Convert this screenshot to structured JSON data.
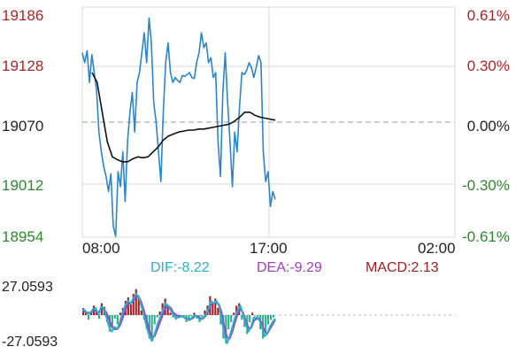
{
  "chart_data": [
    {
      "type": "line",
      "title": "",
      "price_axis_labels": [
        "19186",
        "19128",
        "19070",
        "19012",
        "18954"
      ],
      "percent_axis_labels": [
        "0.61%",
        "0.30%",
        "0.00%",
        "-0.30%",
        "-0.61%"
      ],
      "ylim": [
        18954,
        19186
      ],
      "reference_price": 19070,
      "x_tick_labels": [
        "08:00",
        "17:00",
        "02:00"
      ],
      "grid": true,
      "colors": {
        "up": "#b22222",
        "down": "#2a8a2a",
        "neutral": "#222222",
        "price": "#2a86c8",
        "avg": "#111111"
      },
      "series": [
        {
          "values": [
            19140,
            19130,
            19142,
            19110,
            19138,
            19120,
            19102,
            19060,
            19040,
            19025,
            19015,
            19000,
            19018,
            18965,
            18955,
            19020,
            19005,
            19040,
            18990,
            19050,
            19080,
            19100,
            19060,
            19110,
            19120,
            19140,
            19160,
            19130,
            19175,
            19150,
            19090,
            19070,
            19040,
            19010,
            19080,
            19130,
            19150,
            19120,
            19110,
            19115,
            19112,
            19110,
            19117,
            19116,
            19118,
            19120,
            19115,
            19114,
            19130,
            19140,
            19160,
            19145,
            19150,
            19130,
            19135,
            19115,
            19120,
            19050,
            19015,
            19100,
            19140,
            19090,
            19050,
            19005,
            19060,
            19040,
            19085,
            19120,
            19118,
            19122,
            19130,
            19125,
            19115,
            19125,
            19137,
            19130,
            19040,
            19010,
            19020,
            18985,
            19000,
            18992
          ]
        },
        {
          "values": [
            19120,
            19110,
            19080,
            19050,
            19035,
            19032,
            19030,
            19030,
            19033,
            19035,
            19034,
            19035,
            19040,
            19045,
            19052,
            19056,
            19058,
            19060,
            19061,
            19062,
            19062,
            19063,
            19063,
            19064,
            19065,
            19066,
            19067,
            19068,
            19071,
            19075,
            19080,
            19080,
            19077,
            19075,
            19074,
            19073,
            19072
          ]
        }
      ]
    },
    {
      "type": "bar",
      "title": "",
      "axis_labels": [
        "27.0593",
        "-27.0593"
      ],
      "ylim": [
        -27.0593,
        27.0593
      ],
      "legend": [
        {
          "label": "DIF:-8.22",
          "color": "#2ab0c8"
        },
        {
          "label": "DEA:-9.29",
          "color": "#a040c0"
        },
        {
          "label": "MACD:2.13",
          "color": "#a02020"
        }
      ],
      "colors": {
        "positive": "#a02020",
        "negative": "#2ab090",
        "dif": "#2ab0c8",
        "dea": "#a040c0"
      },
      "histogram": [
        6,
        2,
        -4,
        3,
        8,
        5,
        -3,
        10,
        7,
        -6,
        -14,
        -10,
        -3,
        -8,
        2,
        6,
        12,
        15,
        9,
        18,
        22,
        16,
        4,
        -4,
        -12,
        -20,
        -18,
        -8,
        -2,
        3,
        10,
        14,
        8,
        2,
        -2,
        -4,
        -1,
        0,
        -2,
        -6,
        -5,
        -1,
        2,
        -3,
        -6,
        -2,
        4,
        8,
        16,
        10,
        14,
        6,
        -8,
        -20,
        -24,
        -12,
        -6,
        2,
        8,
        10,
        -4,
        -10,
        -16,
        -6,
        2,
        0,
        -4,
        -12,
        -20,
        -14,
        -8,
        -4,
        -2
      ],
      "dif": [
        5,
        4,
        1,
        2,
        5,
        6,
        0,
        7,
        6,
        -2,
        -10,
        -14,
        -10,
        -12,
        -6,
        2,
        8,
        12,
        10,
        14,
        18,
        16,
        8,
        0,
        -10,
        -18,
        -22,
        -16,
        -8,
        -2,
        4,
        10,
        8,
        4,
        0,
        -2,
        -2,
        -1,
        -2,
        -4,
        -4,
        -2,
        0,
        -2,
        -4,
        -3,
        0,
        5,
        12,
        10,
        12,
        8,
        -4,
        -16,
        -24,
        -18,
        -10,
        -2,
        4,
        8,
        0,
        -8,
        -14,
        -10,
        -2,
        -2,
        -4,
        -10,
        -18,
        -16,
        -10,
        -6,
        -3
      ],
      "dea": [
        3,
        3,
        2,
        2,
        3,
        4,
        2,
        4,
        5,
        2,
        -4,
        -10,
        -12,
        -12,
        -9,
        -3,
        4,
        9,
        10,
        12,
        15,
        16,
        11,
        4,
        -5,
        -13,
        -19,
        -18,
        -12,
        -6,
        0,
        6,
        8,
        6,
        2,
        0,
        -1,
        -1,
        -2,
        -3,
        -4,
        -3,
        -1,
        -1,
        -3,
        -3,
        -1,
        3,
        9,
        10,
        11,
        9,
        2,
        -10,
        -19,
        -20,
        -14,
        -6,
        1,
        5,
        2,
        -5,
        -11,
        -11,
        -5,
        -3,
        -3,
        -7,
        -14,
        -16,
        -12,
        -8,
        -4
      ]
    }
  ]
}
